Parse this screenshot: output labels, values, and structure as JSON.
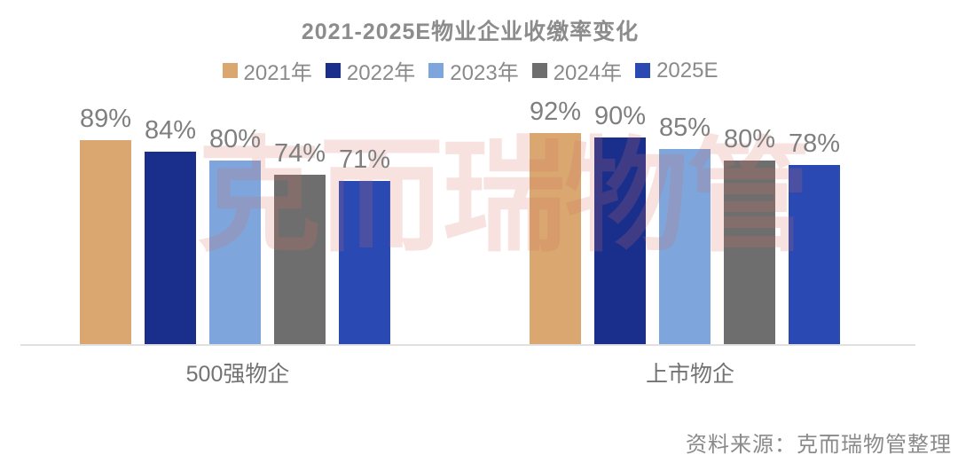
{
  "title": "2021-2025E物业企业收缴率变化",
  "watermark": "克而瑞物管",
  "source": "资料来源：克而瑞物管整理",
  "chart_data": {
    "type": "bar",
    "title": "2021-2025E物业企业收缴率变化",
    "categories": [
      "500强物企",
      "上市物企"
    ],
    "series": [
      {
        "name": "2021年",
        "color": "#D9A76F",
        "values": [
          89,
          92
        ]
      },
      {
        "name": "2022年",
        "color": "#1A2F8C",
        "values": [
          84,
          90
        ]
      },
      {
        "name": "2023年",
        "color": "#7EA6DC",
        "values": [
          80,
          85
        ]
      },
      {
        "name": "2024年",
        "color": "#6F6E6E",
        "values": [
          74,
          80
        ]
      },
      {
        "name": "2025E",
        "color": "#2A49B2",
        "values": [
          71,
          78
        ]
      }
    ],
    "unit": "%",
    "value_label_format": "{v}%",
    "ylim": [
      0,
      100
    ],
    "grid": false,
    "legend_position": "top",
    "value_labels": true,
    "axis_color": "#E0E0E0",
    "text_color": "#8A8A8A"
  }
}
